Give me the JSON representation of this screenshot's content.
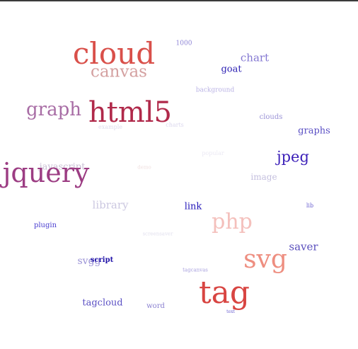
{
  "tag_cloud": {
    "words": [
      {
        "text": "cloud",
        "color": "#d9504a"
      },
      {
        "text": "canvas",
        "color": "#d4a0a0"
      },
      {
        "text": "1000",
        "color": "#8f86d6"
      },
      {
        "text": "chart",
        "color": "#8478d2"
      },
      {
        "text": "goat",
        "color": "#2b1fb3"
      },
      {
        "text": "background",
        "color": "#b9b2e4"
      },
      {
        "text": "graph",
        "color": "#a86da5"
      },
      {
        "text": "html5",
        "color": "#b0294a"
      },
      {
        "text": "example",
        "color": "#dedcec"
      },
      {
        "text": "charts",
        "color": "#dcd8ee"
      },
      {
        "text": "clouds",
        "color": "#9a92d6"
      },
      {
        "text": "graphs",
        "color": "#5a4fc4"
      },
      {
        "text": "javascript",
        "color": "#c8bfd4"
      },
      {
        "text": "jquery",
        "color": "#9c3d83"
      },
      {
        "text": "demo",
        "color": "#f0e0e0"
      },
      {
        "text": "popular",
        "color": "#ebe9f4"
      },
      {
        "text": "jpeg",
        "color": "#3b1fb8"
      },
      {
        "text": "image",
        "color": "#c4bfde"
      },
      {
        "text": "library",
        "color": "#cbc7e0"
      },
      {
        "text": "link",
        "color": "#2216b8"
      },
      {
        "text": "lib",
        "color": "#6a5fd0"
      },
      {
        "text": "php",
        "color": "#f4c0bc"
      },
      {
        "text": "plugin",
        "color": "#4a3ed0"
      },
      {
        "text": "screensaver",
        "color": "#e2e0ee"
      },
      {
        "text": "saver",
        "color": "#5a4fbd"
      },
      {
        "text": "svg",
        "color": "#ee8e80"
      },
      {
        "text": "svgg",
        "color": "#9a92d6"
      },
      {
        "text": "script",
        "color": "#2012a8"
      },
      {
        "text": "tagcanvas",
        "color": "#a8a0de"
      },
      {
        "text": "tag",
        "color": "#d84542"
      },
      {
        "text": "tagcloud",
        "color": "#5a4fc4"
      },
      {
        "text": "word",
        "color": "#8a80d0"
      },
      {
        "text": "text",
        "color": "#6a5fd0"
      }
    ]
  }
}
